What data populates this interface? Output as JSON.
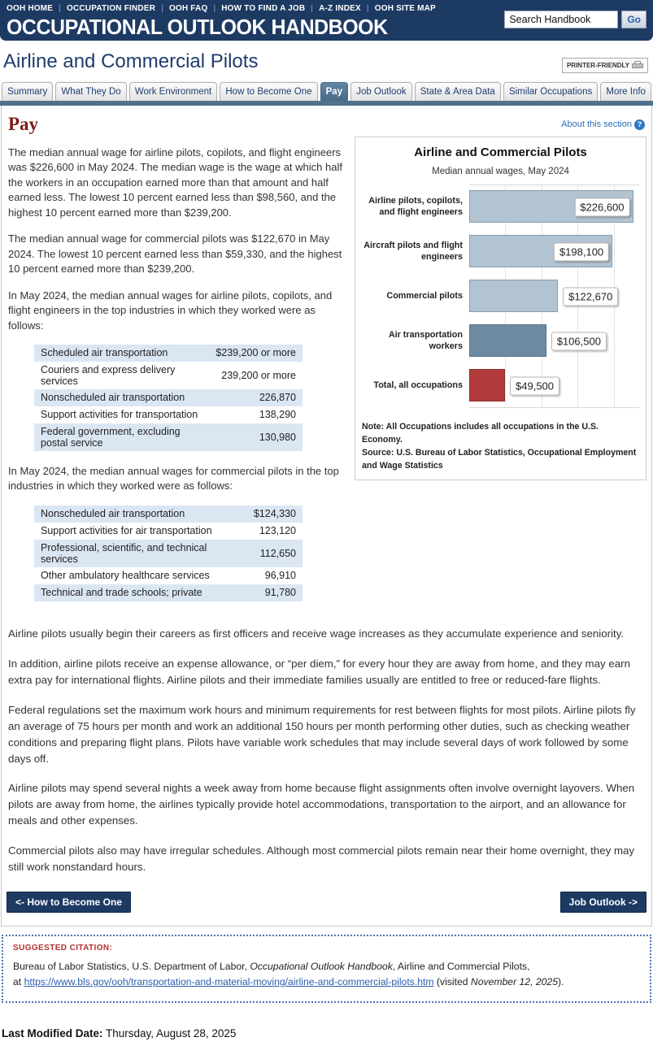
{
  "header": {
    "top_links": [
      "OOH HOME",
      "OCCUPATION FINDER",
      "OOH FAQ",
      "HOW TO FIND A JOB",
      "A-Z INDEX",
      "OOH SITE MAP"
    ],
    "title": "OCCUPATIONAL OUTLOOK HANDBOOK",
    "search": {
      "value": "Search Handbook",
      "go_label": "Go"
    }
  },
  "page": {
    "title": "Airline and Commercial Pilots",
    "printer_friendly_label": "PRINTER-FRIENDLY"
  },
  "tabs": {
    "items": [
      "Summary",
      "What They Do",
      "Work Environment",
      "How to Become One",
      "Pay",
      "Job Outlook",
      "State & Area Data",
      "Similar Occupations",
      "More Info"
    ],
    "active": "Pay"
  },
  "section": {
    "heading": "Pay",
    "about_link": "About this section",
    "left_paragraphs": {
      "p1": "The median annual wage for airline pilots, copilots, and flight engineers was $226,600 in May 2024. The median wage is the wage at which half the workers in an occupation earned more than that amount and half earned less. The lowest 10 percent earned less than $98,560, and the highest 10 percent earned more than $239,200.",
      "p2": "The median annual wage for commercial pilots was $122,670 in May 2024. The lowest 10 percent earned less than $59,330, and the highest 10 percent earned more than $239,200.",
      "table1_intro": "In May 2024, the median annual wages for airline pilots, copilots, and flight engineers in the top industries in which they worked were as follows:",
      "table2_intro": "In May 2024, the median annual wages for commercial pilots in the top industries in which they worked were as follows:"
    },
    "tables": [
      {
        "rows": [
          [
            "Scheduled air transportation",
            "$239,200 or more"
          ],
          [
            "Couriers and express delivery services",
            "239,200 or more"
          ],
          [
            "Nonscheduled air transportation",
            "226,870"
          ],
          [
            "Support activities for transportation",
            "138,290"
          ],
          [
            "Federal government, excluding postal service",
            "130,980"
          ]
        ]
      },
      {
        "rows": [
          [
            "Nonscheduled air transportation",
            "$124,330"
          ],
          [
            "Support activities for air transportation",
            "123,120"
          ],
          [
            "Professional, scientific, and technical services",
            "112,650"
          ],
          [
            "Other ambulatory healthcare services",
            "96,910"
          ],
          [
            "Technical and trade schools; private",
            "91,780"
          ]
        ]
      }
    ],
    "full_paragraphs": [
      "Airline pilots usually begin their careers as first officers and receive wage increases as they accumulate experience and seniority.",
      "In addition, airline pilots receive an expense allowance, or “per diem,” for every hour they are away from home, and they may earn extra pay for international flights. Airline pilots and their immediate families usually are entitled to free or reduced-fare flights.",
      "Federal regulations set the maximum work hours and minimum requirements for rest between flights for most pilots. Airline pilots fly an average of 75 hours per month and work an additional 150 hours per month performing other duties, such as checking weather conditions and preparing flight plans. Pilots have variable work schedules that may include several days of work followed by some days off.",
      "Airline pilots may spend several nights a week away from home because flight assignments often involve overnight layovers. When pilots are away from home, the airlines typically provide hotel accommodations, transportation to the airport, and an allowance for meals and other expenses.",
      "Commercial pilots also may have irregular schedules. Although most commercial pilots remain near their home overnight, they may still work nonstandard hours."
    ]
  },
  "chart_data": {
    "type": "bar",
    "orientation": "horizontal",
    "title": "Airline and Commercial Pilots",
    "subtitle": "Median annual wages, May 2024",
    "categories": [
      "Airline pilots, copilots, and flight engineers",
      "Aircraft pilots and flight engineers",
      "Commercial pilots",
      "Air transportation workers",
      "Total, all occupations"
    ],
    "values": [
      226600,
      198100,
      122670,
      106500,
      49500
    ],
    "value_labels": [
      "$226,600",
      "$198,100",
      "$122,670",
      "$106,500",
      "$49,500"
    ],
    "bar_colors": [
      "#b2c3d2",
      "#b2c3d2",
      "#b2c3d2",
      "#6d8aa1",
      "#b23c3c"
    ],
    "bar_border_colors": [
      "#869cae",
      "#869cae",
      "#869cae",
      "#57748b",
      "#8e2e2e"
    ],
    "xlim": [
      0,
      235000
    ],
    "gridlines": [
      50000,
      100000,
      150000,
      200000
    ],
    "grid": "vertical-light",
    "legend": "none",
    "note": "Note: All Occupations includes all occupations in the U.S. Economy.",
    "source": "Source: U.S. Bureau of Labor Statistics, Occupational Employment and Wage Statistics"
  },
  "nav_buttons": {
    "prev": "<- How to Become One",
    "next": "Job Outlook ->"
  },
  "citation": {
    "label": "SUGGESTED CITATION:",
    "line1_pre": "Bureau of Labor Statistics, U.S. Department of Labor, ",
    "line1_italic": "Occupational Outlook Handbook",
    "line1_post": ", Airline and Commercial Pilots,",
    "line2_pre": "at ",
    "line2_link": "https://www.bls.gov/ooh/transportation-and-material-moving/airline-and-commercial-pilots.htm",
    "line2_mid": " (visited ",
    "line2_visited": "November 12, 2025",
    "line2_post": ")."
  },
  "footer": {
    "last_modified_label": "Last Modified Date:",
    "last_modified_value": "Thursday, August 28, 2025"
  }
}
